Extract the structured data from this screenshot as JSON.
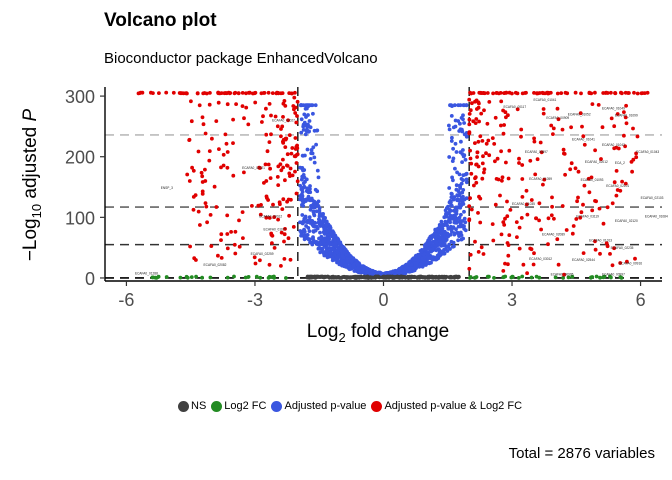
{
  "chart_data": {
    "type": "scatter",
    "title": "Volcano plot",
    "subtitle": "Bioconductor package EnhancedVolcano",
    "xlabel_base": "Log",
    "xlabel_sub": "2",
    "xlabel_rest": " fold change",
    "ylabel_prefix": "−Log",
    "ylabel_sub": "10",
    "ylabel_rest": " adjusted ",
    "ylabel_italic": "P",
    "caption": "Total = 2876 variables",
    "xlim": [
      -6.5,
      6.5
    ],
    "ylim": [
      -5,
      315
    ],
    "x_ticks": [
      -6,
      -3,
      0,
      3,
      6
    ],
    "x_tick_labels": [
      "-6",
      "-3",
      "0",
      "3",
      "6"
    ],
    "y_ticks": [
      0,
      100,
      200,
      300
    ],
    "y_tick_labels": [
      "0",
      "100",
      "200",
      "300"
    ],
    "fc_cutoff": 2,
    "cap_value": 305,
    "hlines": [
      {
        "y": 0,
        "color": "#000000"
      },
      {
        "y": 55,
        "color": "#333333"
      },
      {
        "y": 117,
        "color": "#666666"
      },
      {
        "y": 236,
        "color": "#bbbbbb"
      }
    ],
    "series": [
      {
        "name": "NS",
        "label": "NS",
        "color": "#404040"
      },
      {
        "name": "Log2 FC",
        "label": "Log2 FC",
        "color": "#228B22"
      },
      {
        "name": "Adjusted p-value",
        "label": "Adjusted p-value",
        "color": "#3A56E0"
      },
      {
        "name": "Adjusted p-value & Log2 FC",
        "label": "Adjusted p-value & Log2 FC",
        "color": "#E00000"
      }
    ],
    "point_labels": [
      {
        "x": -5.2,
        "y": 147,
        "text": "ENSP_3"
      },
      {
        "x": -2.6,
        "y": 258,
        "text": "ECAFA0_02027"
      },
      {
        "x": -3.3,
        "y": 180,
        "text": "ECAFA0_02021"
      },
      {
        "x": -2.9,
        "y": 100,
        "text": "ECAFA0_00012"
      },
      {
        "x": -2.8,
        "y": 78,
        "text": "ECAFA0_01027"
      },
      {
        "x": -3.1,
        "y": 38,
        "text": "ECAFA0_02259"
      },
      {
        "x": -4.2,
        "y": 20,
        "text": "ECAFA0_02082"
      },
      {
        "x": -5.8,
        "y": 6,
        "text": "ECAFA0_01288"
      },
      {
        "x": 2.8,
        "y": 280,
        "text": "ECAFA0_00117"
      },
      {
        "x": 3.5,
        "y": 292,
        "text": "ECAFA0_01041"
      },
      {
        "x": 3.8,
        "y": 262,
        "text": "ECAFA0_00909"
      },
      {
        "x": 4.3,
        "y": 268,
        "text": "ECAFA0_01052"
      },
      {
        "x": 5.1,
        "y": 278,
        "text": "ECAFA0_01049"
      },
      {
        "x": 5.4,
        "y": 266,
        "text": "ECAFA0_01099"
      },
      {
        "x": 4.4,
        "y": 227,
        "text": "ECAFA0_01041"
      },
      {
        "x": 5.1,
        "y": 218,
        "text": "ECAFA0_01043"
      },
      {
        "x": 5.9,
        "y": 206,
        "text": "ECAFA0_01043"
      },
      {
        "x": 4.7,
        "y": 190,
        "text": "ECAFA0_02012"
      },
      {
        "x": 5.4,
        "y": 188,
        "text": "ECA_2"
      },
      {
        "x": 3.3,
        "y": 206,
        "text": "ECAFA0_00897"
      },
      {
        "x": 4.6,
        "y": 160,
        "text": "ECAFA0_01093"
      },
      {
        "x": 5.2,
        "y": 150,
        "text": "ECAFA0_02101"
      },
      {
        "x": 6.0,
        "y": 130,
        "text": "ECAFA0_02103"
      },
      {
        "x": 3.4,
        "y": 162,
        "text": "ECAFA0_01059"
      },
      {
        "x": 3.0,
        "y": 120,
        "text": "ECAFA0_01035"
      },
      {
        "x": 4.5,
        "y": 100,
        "text": "ECAFA0_03119"
      },
      {
        "x": 5.4,
        "y": 92,
        "text": "ECAFA0_02120"
      },
      {
        "x": 6.1,
        "y": 100,
        "text": "ECAFA0_01084"
      },
      {
        "x": 3.7,
        "y": 70,
        "text": "ECAFA0_02089"
      },
      {
        "x": 4.8,
        "y": 60,
        "text": "ECAFA0_01013"
      },
      {
        "x": 5.3,
        "y": 48,
        "text": "ECAFA0_02235"
      },
      {
        "x": 3.4,
        "y": 30,
        "text": "ECAFA0_03012"
      },
      {
        "x": 4.4,
        "y": 28,
        "text": "ECAFA0_02544"
      },
      {
        "x": 5.5,
        "y": 22,
        "text": "ECAFA0_00916"
      },
      {
        "x": 3.9,
        "y": 4,
        "text": "ECAFA0_00995"
      },
      {
        "x": 5.1,
        "y": 4,
        "text": "ECAFA0_00997"
      }
    ]
  },
  "legend_items": [
    {
      "label": "NS",
      "color": "#404040"
    },
    {
      "label": "Log2 FC",
      "color": "#228B22"
    },
    {
      "label": "Adjusted p-value",
      "color": "#3A56E0"
    },
    {
      "label": "Adjusted p-value & Log2 FC",
      "color": "#E00000"
    }
  ]
}
